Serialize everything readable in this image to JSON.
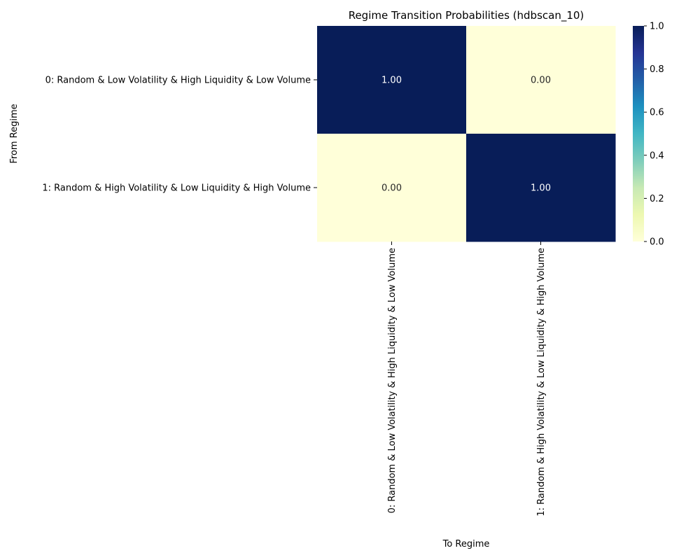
{
  "chart_data": {
    "type": "heatmap",
    "title": "Regime Transition Probabilities (hdbscan_10)",
    "xlabel": "To Regime",
    "ylabel": "From Regime",
    "row_labels": [
      "0: Random & Low Volatility & High Liquidity & Low Volume",
      "1: Random & High Volatility & Low Liquidity & High Volume"
    ],
    "col_labels": [
      "0: Random & Low Volatility & High Liquidity & Low Volume",
      "1: Random & High Volatility & Low Liquidity & High Volume"
    ],
    "values": [
      [
        1.0,
        0.0
      ],
      [
        0.0,
        1.0
      ]
    ],
    "annotations": [
      [
        "1.00",
        "0.00"
      ],
      [
        "0.00",
        "1.00"
      ]
    ],
    "colorbar": {
      "range": [
        0,
        1
      ],
      "ticks": [
        "0.0",
        "0.2",
        "0.4",
        "0.6",
        "0.8",
        "1.0"
      ],
      "colormap": "YlGnBu",
      "low_color": "#ffffd9",
      "high_color": "#081d58"
    }
  }
}
